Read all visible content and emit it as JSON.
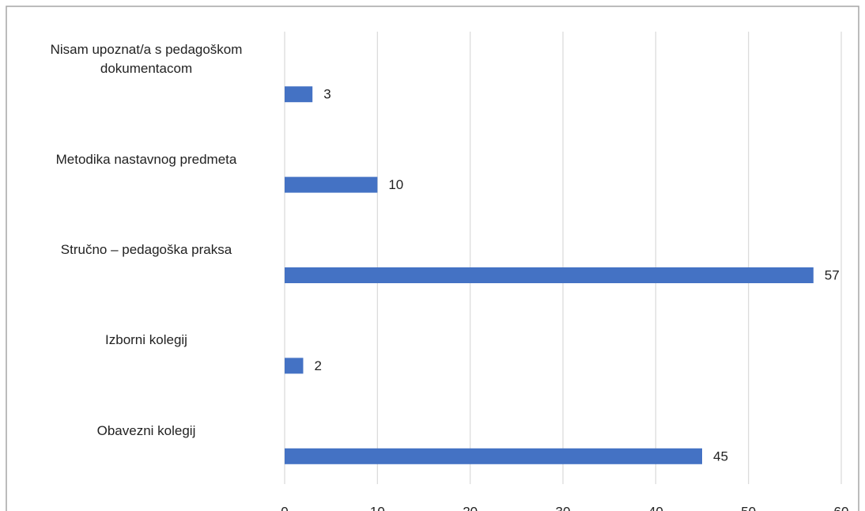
{
  "chart_data": {
    "type": "bar",
    "orientation": "horizontal",
    "categories": [
      "Nisam upoznat/a s pedagoškom dokumentacom",
      "Metodika nastavnog predmeta",
      "Stručno – pedagoška praksa",
      "Izborni kolegij",
      "Obavezni kolegij"
    ],
    "values": [
      3,
      10,
      57,
      2,
      45
    ],
    "color": "#4472c4",
    "xlim": [
      0,
      60
    ],
    "xticks": [
      0,
      10,
      20,
      30,
      40,
      50,
      60
    ],
    "grid": true
  }
}
